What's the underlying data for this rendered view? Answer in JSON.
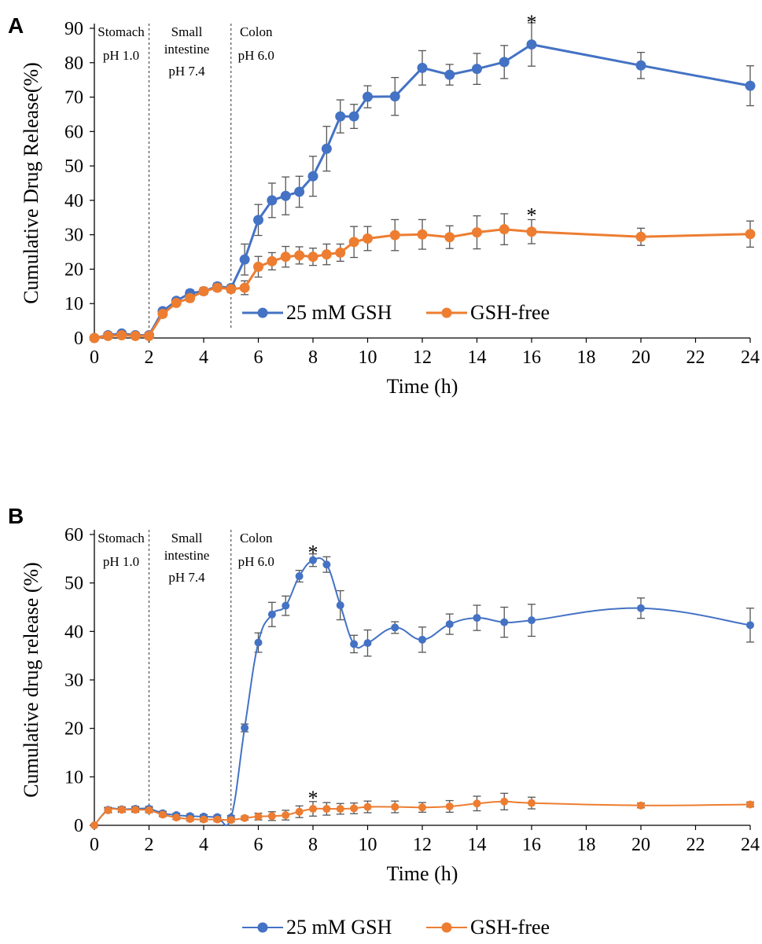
{
  "colors": {
    "gsh": "#4472C4",
    "free": "#ED7D31",
    "axis": "#000000",
    "error": "#555555"
  },
  "chart_data": [
    {
      "type": "line",
      "panel": "A",
      "xlabel": "Time (h)",
      "ylabel": "Cumulative Drug Release(%)",
      "xlim": [
        0,
        24
      ],
      "ylim": [
        0,
        90
      ],
      "xticks": [
        0,
        2,
        4,
        6,
        8,
        10,
        12,
        14,
        16,
        18,
        20,
        22,
        24
      ],
      "yticks": [
        0,
        10,
        20,
        30,
        40,
        50,
        60,
        70,
        80,
        90
      ],
      "grid": false,
      "legend_position": "bottom",
      "smooth": false,
      "regions": [
        {
          "label": "Stomach",
          "ph": "pH 1.0",
          "x": 0,
          "boundary": 2
        },
        {
          "label": "Small\nintestine",
          "ph": "pH 7.4",
          "x": 2,
          "boundary": 5
        },
        {
          "label": "Colon",
          "ph": "pH 6.0",
          "x": 5
        }
      ],
      "annotations": [
        {
          "text": "*",
          "x": 16,
          "y": 92
        },
        {
          "text": "*",
          "x": 16,
          "y": 36
        }
      ],
      "series": [
        {
          "name": "25 mM GSH",
          "x": [
            0,
            0.5,
            1,
            1.5,
            2,
            2.5,
            3,
            3.5,
            4,
            4.5,
            5,
            5.5,
            6,
            6.5,
            7,
            7.5,
            8,
            8.5,
            9,
            9.5,
            10,
            11,
            12,
            13,
            14,
            15,
            16,
            20,
            24
          ],
          "y": [
            0,
            0.8,
            1.3,
            0.8,
            0.8,
            7.8,
            10.8,
            13,
            13.6,
            15,
            14.5,
            22.8,
            34.3,
            40,
            41.3,
            42.5,
            47,
            55,
            64.4,
            64.4,
            70.1,
            70.2,
            78.5,
            76.5,
            78.2,
            80.2,
            85.3,
            79.2,
            73.3
          ],
          "err": [
            0.3,
            0.5,
            0.5,
            0.5,
            0.5,
            0.8,
            0.8,
            1,
            1,
            1,
            1,
            4.5,
            4.5,
            5,
            5.5,
            4.5,
            5.8,
            6.5,
            4.8,
            3.5,
            3.2,
            5.5,
            5,
            3,
            4.5,
            4.8,
            6.3,
            3.8,
            5.8
          ]
        },
        {
          "name": "GSH-free",
          "x": [
            0,
            0.5,
            1,
            1.5,
            2,
            2.5,
            3,
            3.5,
            4,
            4.5,
            5,
            5.5,
            6,
            6.5,
            7,
            7.5,
            8,
            8.5,
            9,
            9.5,
            10,
            11,
            12,
            13,
            14,
            15,
            16,
            20,
            24
          ],
          "y": [
            0,
            0.6,
            0.8,
            0.6,
            0.6,
            7,
            10.2,
            11.6,
            13.6,
            14.6,
            14.2,
            14.6,
            20.7,
            22.3,
            23.6,
            24,
            23.6,
            24.3,
            24.8,
            27.9,
            28.9,
            29.9,
            30.1,
            29.3,
            30.7,
            31.6,
            30.9,
            29.4,
            30.2
          ],
          "err": [
            0.3,
            0.4,
            0.4,
            0.4,
            0.4,
            0.8,
            0.8,
            1,
            1,
            1,
            1,
            2,
            3,
            2.5,
            3,
            2.5,
            2.5,
            3,
            2.5,
            4.5,
            3.5,
            4.5,
            4.3,
            3.3,
            4.8,
            4.5,
            3.5,
            2.5,
            3.8
          ]
        }
      ]
    },
    {
      "type": "line",
      "panel": "B",
      "xlabel": "Time (h)",
      "ylabel": "Cumulative drug release (%)",
      "xlim": [
        0,
        24
      ],
      "ylim": [
        0,
        60
      ],
      "xticks": [
        0,
        2,
        4,
        6,
        8,
        10,
        12,
        14,
        16,
        18,
        20,
        22,
        24
      ],
      "yticks": [
        0,
        10,
        20,
        30,
        40,
        50,
        60
      ],
      "grid": false,
      "legend_position": "bottom",
      "smooth": true,
      "regions": [
        {
          "label": "Stomach",
          "ph": "pH 1.0",
          "x": 0,
          "boundary": 2
        },
        {
          "label": "Small\nintestine",
          "ph": "pH 7.4",
          "x": 2,
          "boundary": 5
        },
        {
          "label": "Colon",
          "ph": "pH 6.0",
          "x": 5
        }
      ],
      "annotations": [
        {
          "text": "*",
          "x": 8,
          "y": 56.5
        },
        {
          "text": "*",
          "x": 8,
          "y": 5.8
        }
      ],
      "series": [
        {
          "name": "25 mM GSH",
          "x": [
            0,
            0.5,
            1,
            1.5,
            2,
            2.5,
            3,
            3.5,
            4,
            4.5,
            5,
            5.5,
            6,
            6.5,
            7,
            7.5,
            8,
            8.5,
            9,
            9.5,
            10,
            11,
            12,
            13,
            14,
            15,
            16,
            20,
            24
          ],
          "y": [
            0,
            3.2,
            3.3,
            3.4,
            3.4,
            2.5,
            2.1,
            1.9,
            1.8,
            1.7,
            1.6,
            20.1,
            37.7,
            43.5,
            45.3,
            51.4,
            54.7,
            53.8,
            45.4,
            37.4,
            37.6,
            40.8,
            38.3,
            41.5,
            42.8,
            41.9,
            42.3,
            44.8,
            41.3
          ],
          "err": [
            0.2,
            0.5,
            0.5,
            0.5,
            0.5,
            0.4,
            0.4,
            0.4,
            0.4,
            0.4,
            0.4,
            0.8,
            2,
            2.5,
            2,
            1.2,
            1.3,
            1.6,
            3,
            1.8,
            2.7,
            1.2,
            2.6,
            2.1,
            2.6,
            3.1,
            3.3,
            2.1,
            3.5
          ]
        },
        {
          "name": "GSH-free",
          "x": [
            0,
            0.5,
            1,
            1.5,
            2,
            2.5,
            3,
            3.5,
            4,
            4.5,
            5,
            5.5,
            6,
            6.5,
            7,
            7.5,
            8,
            8.5,
            9,
            9.5,
            10,
            11,
            12,
            13,
            14,
            15,
            16,
            20,
            24
          ],
          "y": [
            0,
            3.1,
            3.2,
            3.2,
            3.1,
            2.2,
            1.6,
            1.3,
            1.2,
            1.2,
            1.1,
            1.5,
            1.8,
            1.9,
            2.1,
            2.8,
            3.4,
            3.4,
            3.4,
            3.5,
            3.8,
            3.8,
            3.7,
            3.9,
            4.5,
            4.9,
            4.6,
            4.1,
            4.3
          ],
          "err": [
            0.2,
            0.5,
            0.5,
            0.5,
            0.5,
            0.4,
            0.4,
            0.4,
            0.4,
            0.4,
            0.4,
            0.4,
            0.7,
            0.9,
            1,
            1.2,
            1.5,
            1.3,
            1.1,
            1.1,
            1.2,
            1.2,
            1,
            1.2,
            1.5,
            1.7,
            1.2,
            0.5,
            0.5
          ]
        }
      ]
    }
  ]
}
